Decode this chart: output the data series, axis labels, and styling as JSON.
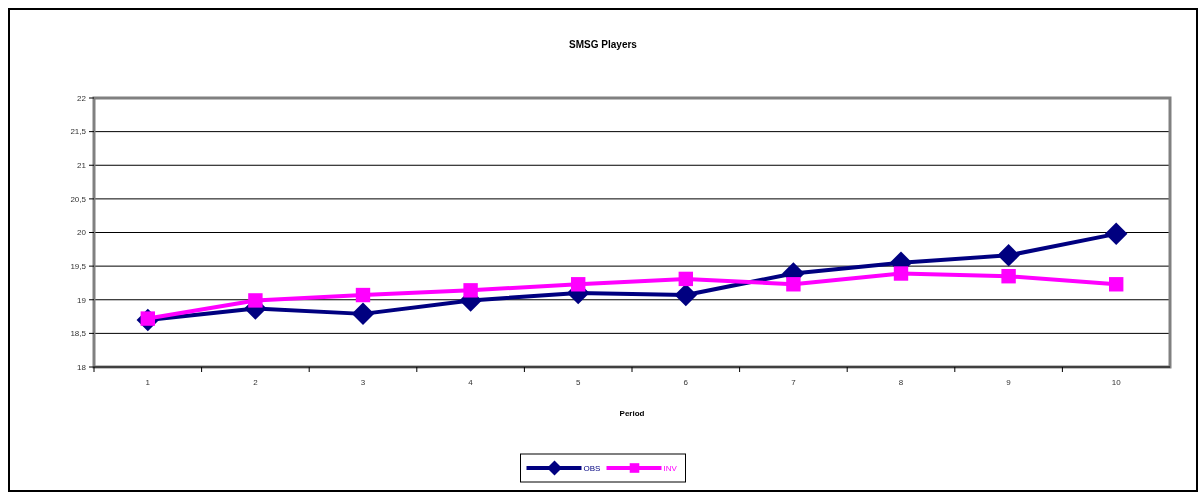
{
  "chart_data": {
    "type": "line",
    "title": "SMSG Players",
    "xlabel": "Period",
    "categories": [
      "1",
      "2",
      "3",
      "4",
      "5",
      "6",
      "7",
      "8",
      "9",
      "10"
    ],
    "series": [
      {
        "name": "OBS",
        "color": "#000080",
        "marker": "diamond",
        "values": [
          18.7,
          18.87,
          18.79,
          18.99,
          19.1,
          19.07,
          19.39,
          19.55,
          19.66,
          19.98
        ]
      },
      {
        "name": "INV",
        "color": "#ff00ff",
        "marker": "square",
        "values": [
          18.72,
          18.99,
          19.07,
          19.14,
          19.23,
          19.31,
          19.23,
          19.39,
          19.35,
          19.23
        ]
      }
    ],
    "ylim": [
      18,
      22
    ],
    "yticks": [
      18,
      {
        "value": 18.5,
        "label": "18,5"
      },
      19,
      {
        "value": 19.5,
        "label": "19,5"
      },
      20,
      {
        "value": 20.5,
        "label": "20,5"
      },
      21,
      {
        "value": 21.5,
        "label": "21,5"
      },
      22
    ],
    "grid": "y",
    "legend": "bottom"
  }
}
